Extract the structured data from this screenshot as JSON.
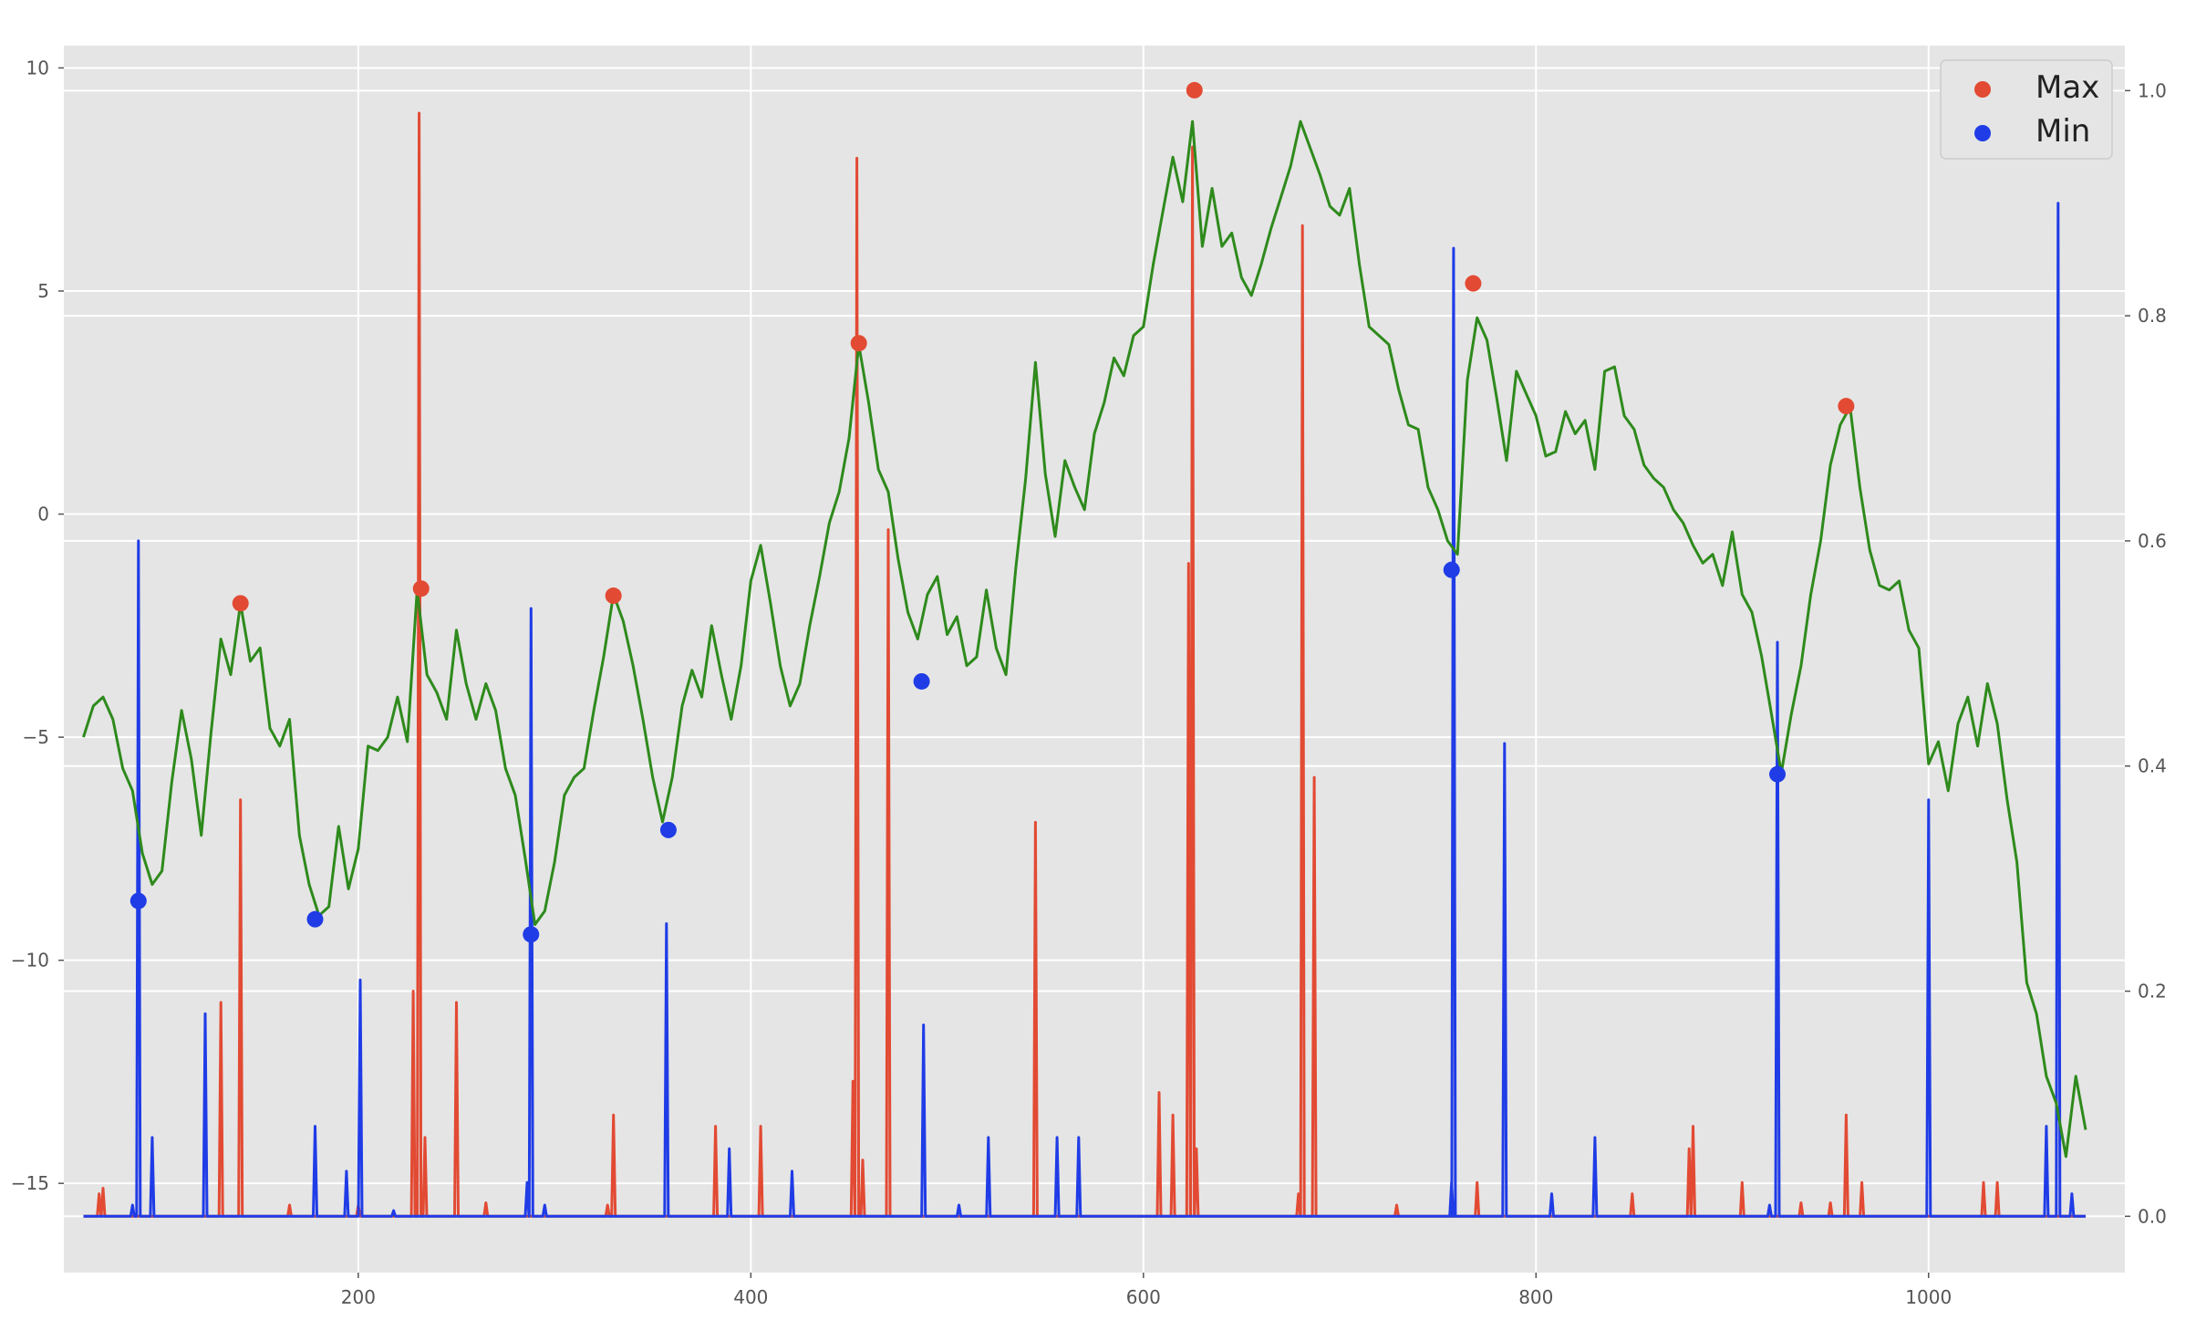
{
  "chart_data": {
    "type": "line",
    "style": "ggplot",
    "grid": true,
    "legend_position": "top-right",
    "x_ticks": [
      200,
      400,
      600,
      800,
      1000
    ],
    "xlim": [
      50,
      1100
    ],
    "y_left_ticks": [
      10,
      5,
      0,
      -5,
      -10,
      -15
    ],
    "ylim_left": [
      -17,
      10.5
    ],
    "y_right_ticks": [
      1.0,
      0.8,
      0.6,
      0.4,
      0.2,
      0.0
    ],
    "ylim_right": [
      -0.05,
      1.04
    ],
    "legend": [
      {
        "label": "Max",
        "color": "#E24A33"
      },
      {
        "label": "Min",
        "color": "#1f3ce6"
      }
    ],
    "series": [
      {
        "kind": "line",
        "axis": "left",
        "color": "#2e8a1c",
        "points": [
          [
            60,
            -5.0
          ],
          [
            65,
            -4.3
          ],
          [
            70,
            -4.1
          ],
          [
            75,
            -4.6
          ],
          [
            80,
            -5.7
          ],
          [
            85,
            -6.2
          ],
          [
            90,
            -7.6
          ],
          [
            95,
            -8.3
          ],
          [
            100,
            -8.0
          ],
          [
            105,
            -6.0
          ],
          [
            110,
            -4.4
          ],
          [
            115,
            -5.5
          ],
          [
            120,
            -7.2
          ],
          [
            125,
            -4.9
          ],
          [
            130,
            -2.8
          ],
          [
            135,
            -3.6
          ],
          [
            140,
            -2.0
          ],
          [
            145,
            -3.3
          ],
          [
            150,
            -3.0
          ],
          [
            155,
            -4.8
          ],
          [
            160,
            -5.2
          ],
          [
            165,
            -4.6
          ],
          [
            170,
            -7.2
          ],
          [
            175,
            -8.3
          ],
          [
            180,
            -9.0
          ],
          [
            185,
            -8.8
          ],
          [
            190,
            -7.0
          ],
          [
            195,
            -8.4
          ],
          [
            200,
            -7.5
          ],
          [
            205,
            -5.2
          ],
          [
            210,
            -5.3
          ],
          [
            215,
            -5.0
          ],
          [
            220,
            -4.1
          ],
          [
            225,
            -5.1
          ],
          [
            230,
            -1.7
          ],
          [
            235,
            -3.6
          ],
          [
            240,
            -4.0
          ],
          [
            245,
            -4.6
          ],
          [
            250,
            -2.6
          ],
          [
            255,
            -3.8
          ],
          [
            260,
            -4.6
          ],
          [
            265,
            -3.8
          ],
          [
            270,
            -4.4
          ],
          [
            275,
            -5.7
          ],
          [
            280,
            -6.3
          ],
          [
            285,
            -7.7
          ],
          [
            290,
            -9.2
          ],
          [
            295,
            -8.9
          ],
          [
            300,
            -7.8
          ],
          [
            305,
            -6.3
          ],
          [
            310,
            -5.9
          ],
          [
            315,
            -5.7
          ],
          [
            320,
            -4.4
          ],
          [
            325,
            -3.2
          ],
          [
            330,
            -1.8
          ],
          [
            335,
            -2.4
          ],
          [
            340,
            -3.4
          ],
          [
            345,
            -4.6
          ],
          [
            350,
            -5.9
          ],
          [
            355,
            -6.9
          ],
          [
            360,
            -5.9
          ],
          [
            365,
            -4.3
          ],
          [
            370,
            -3.5
          ],
          [
            375,
            -4.1
          ],
          [
            380,
            -2.5
          ],
          [
            385,
            -3.6
          ],
          [
            390,
            -4.6
          ],
          [
            395,
            -3.4
          ],
          [
            400,
            -1.5
          ],
          [
            405,
            -0.7
          ],
          [
            410,
            -2.0
          ],
          [
            415,
            -3.4
          ],
          [
            420,
            -4.3
          ],
          [
            425,
            -3.8
          ],
          [
            430,
            -2.5
          ],
          [
            435,
            -1.4
          ],
          [
            440,
            -0.2
          ],
          [
            445,
            0.5
          ],
          [
            450,
            1.7
          ],
          [
            455,
            3.8
          ],
          [
            460,
            2.5
          ],
          [
            465,
            1.0
          ],
          [
            470,
            0.5
          ],
          [
            475,
            -1.0
          ],
          [
            480,
            -2.2
          ],
          [
            485,
            -2.8
          ],
          [
            490,
            -1.8
          ],
          [
            495,
            -1.4
          ],
          [
            500,
            -2.7
          ],
          [
            505,
            -2.3
          ],
          [
            510,
            -3.4
          ],
          [
            515,
            -3.2
          ],
          [
            520,
            -1.7
          ],
          [
            525,
            -3.0
          ],
          [
            530,
            -3.6
          ],
          [
            535,
            -1.2
          ],
          [
            540,
            0.8
          ],
          [
            545,
            3.4
          ],
          [
            550,
            0.9
          ],
          [
            555,
            -0.5
          ],
          [
            560,
            1.2
          ],
          [
            565,
            0.6
          ],
          [
            570,
            0.1
          ],
          [
            575,
            1.8
          ],
          [
            580,
            2.5
          ],
          [
            585,
            3.5
          ],
          [
            590,
            3.1
          ],
          [
            595,
            4.0
          ],
          [
            600,
            4.2
          ],
          [
            605,
            5.6
          ],
          [
            610,
            6.8
          ],
          [
            615,
            8.0
          ],
          [
            620,
            7.0
          ],
          [
            625,
            8.8
          ],
          [
            630,
            6.0
          ],
          [
            635,
            7.3
          ],
          [
            640,
            6.0
          ],
          [
            645,
            6.3
          ],
          [
            650,
            5.3
          ],
          [
            655,
            4.9
          ],
          [
            660,
            5.6
          ],
          [
            665,
            6.4
          ],
          [
            670,
            7.1
          ],
          [
            675,
            7.8
          ],
          [
            680,
            8.8
          ],
          [
            685,
            8.2
          ],
          [
            690,
            7.6
          ],
          [
            695,
            6.9
          ],
          [
            700,
            6.7
          ],
          [
            705,
            7.3
          ],
          [
            710,
            5.6
          ],
          [
            715,
            4.2
          ],
          [
            720,
            4.0
          ],
          [
            725,
            3.8
          ],
          [
            730,
            2.8
          ],
          [
            735,
            2.0
          ],
          [
            740,
            1.9
          ],
          [
            745,
            0.6
          ],
          [
            750,
            0.1
          ],
          [
            755,
            -0.6
          ],
          [
            760,
            -0.9
          ],
          [
            765,
            3.0
          ],
          [
            770,
            4.4
          ],
          [
            775,
            3.9
          ],
          [
            780,
            2.6
          ],
          [
            785,
            1.2
          ],
          [
            790,
            3.2
          ],
          [
            795,
            2.7
          ],
          [
            800,
            2.2
          ],
          [
            805,
            1.3
          ],
          [
            810,
            1.4
          ],
          [
            815,
            2.3
          ],
          [
            820,
            1.8
          ],
          [
            825,
            2.1
          ],
          [
            830,
            1.0
          ],
          [
            835,
            3.2
          ],
          [
            840,
            3.3
          ],
          [
            845,
            2.2
          ],
          [
            850,
            1.9
          ],
          [
            855,
            1.1
          ],
          [
            860,
            0.8
          ],
          [
            865,
            0.6
          ],
          [
            870,
            0.1
          ],
          [
            875,
            -0.2
          ],
          [
            880,
            -0.7
          ],
          [
            885,
            -1.1
          ],
          [
            890,
            -0.9
          ],
          [
            895,
            -1.6
          ],
          [
            900,
            -0.4
          ],
          [
            905,
            -1.8
          ],
          [
            910,
            -2.2
          ],
          [
            915,
            -3.2
          ],
          [
            920,
            -4.5
          ],
          [
            925,
            -5.8
          ],
          [
            930,
            -4.5
          ],
          [
            935,
            -3.4
          ],
          [
            940,
            -1.8
          ],
          [
            945,
            -0.6
          ],
          [
            950,
            1.1
          ],
          [
            955,
            2.0
          ],
          [
            960,
            2.4
          ],
          [
            965,
            0.6
          ],
          [
            970,
            -0.8
          ],
          [
            975,
            -1.6
          ],
          [
            980,
            -1.7
          ],
          [
            985,
            -1.5
          ],
          [
            990,
            -2.6
          ],
          [
            995,
            -3.0
          ],
          [
            1000,
            -5.6
          ],
          [
            1005,
            -5.1
          ],
          [
            1010,
            -6.2
          ],
          [
            1015,
            -4.7
          ],
          [
            1020,
            -4.1
          ],
          [
            1025,
            -5.2
          ],
          [
            1030,
            -3.8
          ],
          [
            1035,
            -4.7
          ],
          [
            1040,
            -6.4
          ],
          [
            1045,
            -7.8
          ],
          [
            1050,
            -10.5
          ],
          [
            1055,
            -11.2
          ],
          [
            1060,
            -12.6
          ],
          [
            1065,
            -13.2
          ],
          [
            1070,
            -14.4
          ],
          [
            1075,
            -12.6
          ],
          [
            1080,
            -13.8
          ]
        ]
      },
      {
        "kind": "spikes",
        "axis": "right",
        "color": "#E24A33",
        "baseline": 0.0,
        "spikes": [
          [
            68,
            0.02
          ],
          [
            70,
            0.025
          ],
          [
            130,
            0.19
          ],
          [
            140,
            0.37
          ],
          [
            165,
            0.01
          ],
          [
            200,
            0.01
          ],
          [
            228,
            0.2
          ],
          [
            231,
            0.98
          ],
          [
            234,
            0.07
          ],
          [
            250,
            0.19
          ],
          [
            265,
            0.012
          ],
          [
            327,
            0.01
          ],
          [
            330,
            0.09
          ],
          [
            382,
            0.08
          ],
          [
            405,
            0.08
          ],
          [
            452,
            0.12
          ],
          [
            454,
            0.94
          ],
          [
            457,
            0.05
          ],
          [
            470,
            0.61
          ],
          [
            545,
            0.35
          ],
          [
            608,
            0.11
          ],
          [
            615,
            0.09
          ],
          [
            623,
            0.58
          ],
          [
            625,
            0.95
          ],
          [
            627,
            0.06
          ],
          [
            679,
            0.02
          ],
          [
            681,
            0.88
          ],
          [
            687,
            0.39
          ],
          [
            729,
            0.01
          ],
          [
            770,
            0.03
          ],
          [
            849,
            0.02
          ],
          [
            878,
            0.06
          ],
          [
            880,
            0.08
          ],
          [
            905,
            0.03
          ],
          [
            935,
            0.012
          ],
          [
            950,
            0.012
          ],
          [
            958,
            0.09
          ],
          [
            966,
            0.03
          ],
          [
            1028,
            0.03
          ],
          [
            1035,
            0.03
          ]
        ]
      },
      {
        "kind": "spikes",
        "axis": "right",
        "color": "#1f3ce6",
        "baseline": 0.0,
        "spikes": [
          [
            85,
            0.01
          ],
          [
            88,
            0.6
          ],
          [
            95,
            0.07
          ],
          [
            122,
            0.18
          ],
          [
            178,
            0.08
          ],
          [
            194,
            0.04
          ],
          [
            201,
            0.21
          ],
          [
            218,
            0.005
          ],
          [
            286,
            0.03
          ],
          [
            288,
            0.54
          ],
          [
            295,
            0.01
          ],
          [
            357,
            0.26
          ],
          [
            389,
            0.06
          ],
          [
            421,
            0.04
          ],
          [
            488,
            0.17
          ],
          [
            506,
            0.01
          ],
          [
            521,
            0.07
          ],
          [
            556,
            0.07
          ],
          [
            567,
            0.07
          ],
          [
            757,
            0.03
          ],
          [
            758,
            0.86
          ],
          [
            784,
            0.42
          ],
          [
            808,
            0.02
          ],
          [
            830,
            0.07
          ],
          [
            919,
            0.01
          ],
          [
            923,
            0.51
          ],
          [
            1000,
            0.37
          ],
          [
            1060,
            0.08
          ],
          [
            1066,
            0.9
          ],
          [
            1073,
            0.02
          ]
        ]
      },
      {
        "kind": "scatter",
        "name": "Max",
        "axis": "left",
        "color": "#E24A33",
        "points": [
          [
            140,
            -2.0
          ],
          [
            232,
            -1.67
          ],
          [
            330,
            -1.83
          ],
          [
            455,
            3.83
          ],
          [
            626,
            9.5
          ],
          [
            768,
            5.17
          ],
          [
            958,
            2.42
          ]
        ]
      },
      {
        "kind": "scatter",
        "name": "Min",
        "axis": "left",
        "color": "#1f3ce6",
        "points": [
          [
            88,
            -8.67
          ],
          [
            178,
            -9.08
          ],
          [
            288,
            -9.42
          ],
          [
            358,
            -7.08
          ],
          [
            487,
            -3.75
          ],
          [
            757,
            -1.25
          ],
          [
            923,
            -5.83
          ]
        ]
      }
    ]
  }
}
